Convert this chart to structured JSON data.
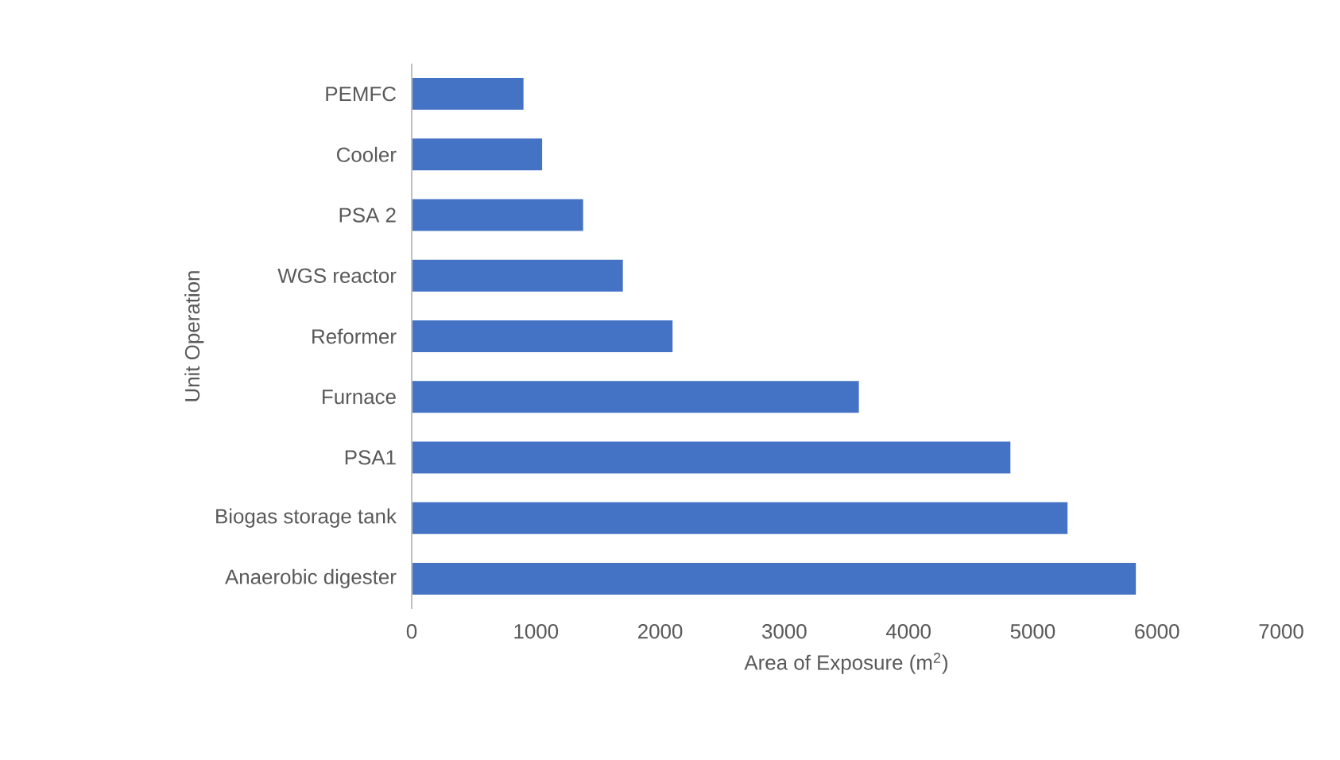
{
  "chart_data": {
    "type": "bar",
    "orientation": "horizontal",
    "xlabel": "Area of Exposure (m$^{2}$)",
    "ylabel": "Unit Operation",
    "categories": [
      "PEMFC",
      "Cooler",
      "PSA 2",
      "WGS reactor",
      "Reformer",
      "Furnace",
      "PSA1",
      "Biogas storage tank",
      "Anaerobic digester"
    ],
    "values": [
      900,
      1050,
      1380,
      1700,
      2100,
      3600,
      4820,
      5280,
      5830
    ],
    "color": "#4472c4",
    "xlim": [
      0,
      7000
    ],
    "xticks": [
      0,
      1000,
      2000,
      3000,
      4000,
      5000,
      6000,
      7000
    ]
  }
}
